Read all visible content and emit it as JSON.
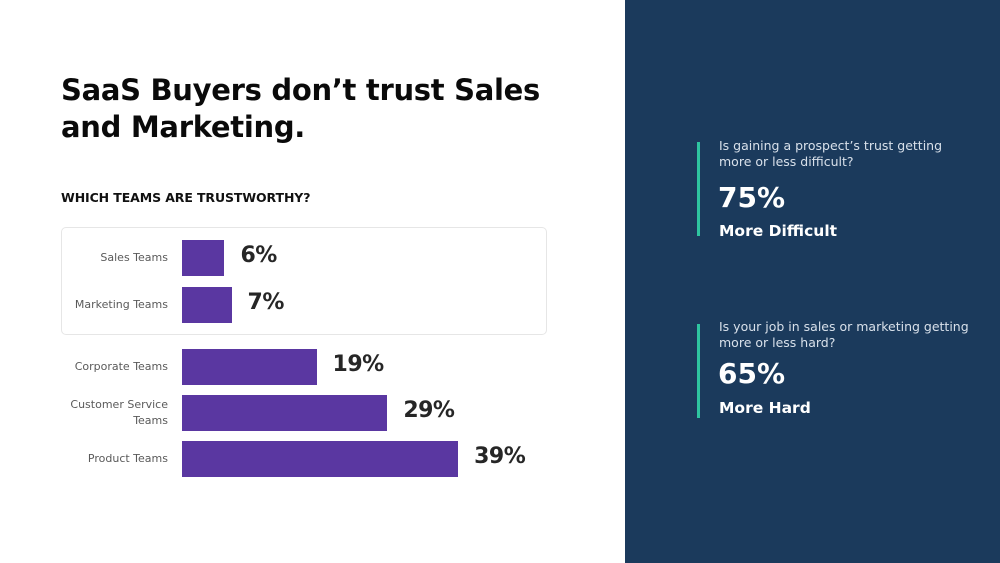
{
  "slide": {
    "title": "SaaS Buyers don’t trust Sales and Marketing.",
    "subtitle": "WHICH TEAMS ARE TRUSTWORTHY?"
  },
  "chart_data": {
    "type": "bar",
    "orientation": "horizontal",
    "title": "WHICH TEAMS ARE TRUSTWORTHY?",
    "xlabel": "",
    "ylabel": "",
    "unit": "%",
    "categories": [
      "Sales Teams",
      "Marketing Teams",
      "Corporate Teams",
      "Customer Service Teams",
      "Product Teams"
    ],
    "category_lines": [
      [
        "Sales Teams"
      ],
      [
        "Marketing Teams"
      ],
      [
        "Corporate Teams"
      ],
      [
        "Customer Service",
        "Teams"
      ],
      [
        "Product Teams"
      ]
    ],
    "values": [
      6,
      7,
      19,
      29,
      39
    ],
    "value_labels": [
      "6%",
      "7%",
      "19%",
      "29%",
      "39%"
    ],
    "highlighted": [
      "Sales Teams",
      "Marketing Teams"
    ],
    "xlim": [
      0,
      39
    ],
    "grid": false,
    "bar_color": "#5a37a1"
  },
  "stats": [
    {
      "question": "Is gaining a prospect’s trust getting more or less difficult?",
      "value": "75%",
      "caption": "More Difficult"
    },
    {
      "question": "Is your job in sales or marketing getting more or less hard?",
      "value": "65%",
      "caption": "More Hard"
    }
  ],
  "colors": {
    "panel_background": "#1b3a5c",
    "accent": "#2ec4a0",
    "bar": "#5a37a1"
  }
}
